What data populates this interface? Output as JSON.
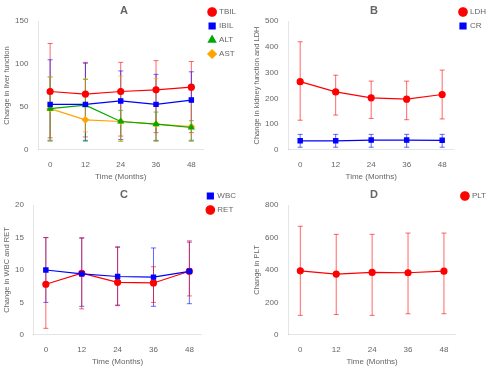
{
  "chart_data": [
    {
      "type": "line",
      "title": "A",
      "xlabel": "Time (Months)",
      "ylabel": "Change in liver function",
      "x": [
        0,
        12,
        24,
        36,
        48
      ],
      "xlim": [
        -4,
        52
      ],
      "xticks": [
        0,
        12,
        24,
        36,
        48
      ],
      "ylim": [
        0,
        150
      ],
      "yticks": [
        0,
        50,
        100,
        150
      ],
      "grid": false,
      "legend": "upper right",
      "series": [
        {
          "name": "TBIL",
          "color": "#FF0000",
          "marker": "circle",
          "values": [
            68,
            65,
            68,
            70,
            73
          ],
          "yerr_lo": [
            54,
            50,
            52,
            50,
            53
          ],
          "yerr_hi": [
            56,
            37,
            34,
            34,
            30
          ]
        },
        {
          "name": "IBIL",
          "color": "#0000FF",
          "marker": "square",
          "values": [
            53,
            53,
            57,
            53,
            58
          ],
          "yerr_lo": [
            42,
            42,
            45,
            42,
            47
          ],
          "yerr_hi": [
            52,
            48,
            35,
            35,
            33
          ]
        },
        {
          "name": "ALT",
          "color": "#00AA00",
          "marker": "triangle",
          "values": [
            48,
            52,
            33,
            30,
            26
          ],
          "yerr_lo": [
            38,
            42,
            23,
            20,
            16
          ],
          "yerr_hi": [
            37,
            30,
            13,
            14,
            8
          ]
        },
        {
          "name": "AST",
          "color": "#FFA500",
          "marker": "diamond",
          "values": [
            48,
            35,
            33,
            30,
            27
          ],
          "yerr_lo": [
            37,
            14,
            23,
            20,
            16
          ],
          "yerr_hi": [
            37,
            48,
            53,
            53,
            33
          ]
        }
      ]
    },
    {
      "type": "line",
      "title": "B",
      "xlabel": "Time (Months)",
      "ylabel": "Change in kidney function and LDH",
      "x": [
        0,
        12,
        24,
        36,
        48
      ],
      "xlim": [
        -4,
        52
      ],
      "xticks": [
        0,
        12,
        24,
        36,
        48
      ],
      "ylim": [
        0,
        500
      ],
      "yticks": [
        0,
        100,
        200,
        300,
        400,
        500
      ],
      "grid": false,
      "legend": "upper right",
      "series": [
        {
          "name": "LDH",
          "color": "#FF0000",
          "marker": "circle",
          "values": [
            265,
            225,
            202,
            197,
            215
          ],
          "yerr_lo": [
            150,
            90,
            80,
            80,
            95
          ],
          "yerr_hi": [
            155,
            65,
            65,
            70,
            95
          ]
        },
        {
          "name": "CR",
          "color": "#0000FF",
          "marker": "square",
          "values": [
            35,
            35,
            38,
            38,
            37
          ],
          "yerr_lo": [
            25,
            25,
            28,
            28,
            27
          ],
          "yerr_hi": [
            25,
            25,
            22,
            22,
            23
          ]
        }
      ]
    },
    {
      "type": "line",
      "title": "C",
      "xlabel": "Time (Months)",
      "ylabel": "Change in WBC and RET",
      "x": [
        0,
        12,
        24,
        36,
        48
      ],
      "xlim": [
        -4,
        52
      ],
      "xticks": [
        0,
        12,
        24,
        36,
        48
      ],
      "ylim": [
        0,
        20
      ],
      "yticks": [
        0,
        5,
        10,
        15,
        20
      ],
      "grid": false,
      "legend": "upper right",
      "series": [
        {
          "name": "WBC",
          "color": "#0000FF",
          "marker": "square",
          "values": [
            10.0,
            9.4,
            9.0,
            8.9,
            9.8
          ],
          "yerr_lo": [
            5.0,
            5.0,
            4.5,
            4.5,
            5.0
          ],
          "yerr_hi": [
            5.0,
            5.5,
            4.5,
            4.5,
            4.5
          ]
        },
        {
          "name": "RET",
          "color": "#FF0000",
          "marker": "circle",
          "values": [
            7.8,
            9.5,
            8.1,
            8.0,
            9.8
          ],
          "yerr_lo": [
            6.8,
            5.5,
            3.5,
            3.0,
            3.8
          ],
          "yerr_hi": [
            7.2,
            5.5,
            5.5,
            2.5,
            4.7
          ]
        }
      ]
    },
    {
      "type": "line",
      "title": "D",
      "xlabel": "Time (Months)",
      "ylabel": "Change in PLT",
      "x": [
        0,
        12,
        24,
        36,
        48
      ],
      "xlim": [
        -4,
        52
      ],
      "xticks": [
        0,
        12,
        24,
        36,
        48
      ],
      "ylim": [
        0,
        800
      ],
      "yticks": [
        0,
        200,
        400,
        600,
        800
      ],
      "grid": false,
      "legend": "upper right",
      "series": [
        {
          "name": "PLT",
          "color": "#FF0000",
          "marker": "circle",
          "values": [
            395,
            375,
            385,
            383,
            393
          ],
          "yerr_lo": [
            275,
            250,
            265,
            253,
            263
          ],
          "yerr_hi": [
            275,
            245,
            235,
            245,
            235
          ]
        }
      ]
    }
  ]
}
